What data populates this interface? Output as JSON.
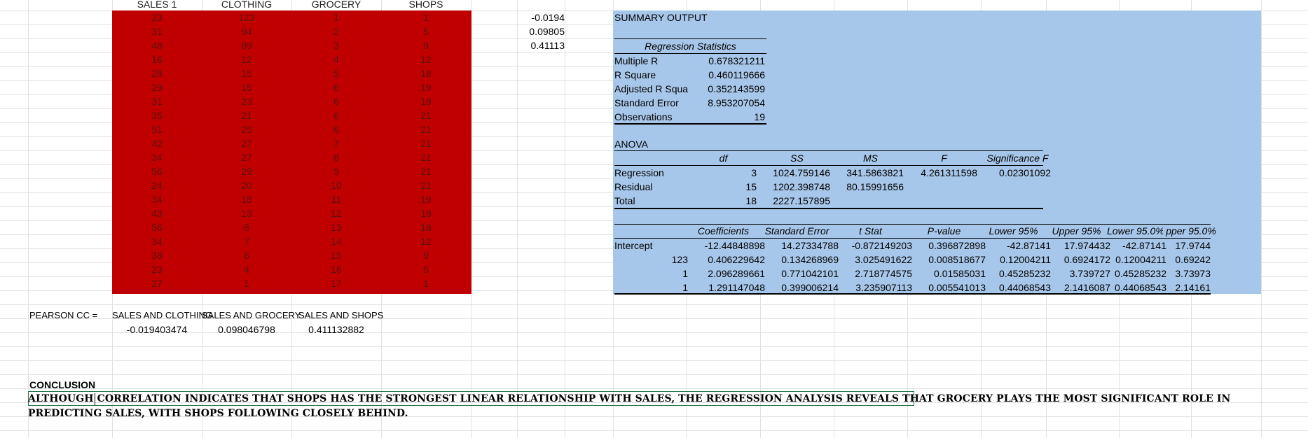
{
  "table": {
    "headers": [
      "SALES 1",
      "CLOTHING",
      "GROCERY",
      "SHOPS"
    ],
    "rows": [
      [
        "23",
        "123",
        "1",
        "1"
      ],
      [
        "31",
        "94",
        "2",
        "5"
      ],
      [
        "48",
        "89",
        "3",
        "9"
      ],
      [
        "16",
        "12",
        "4",
        "12"
      ],
      [
        "28",
        "15",
        "5",
        "18"
      ],
      [
        "29",
        "15",
        "6",
        "19"
      ],
      [
        "31",
        "23",
        "6",
        "19"
      ],
      [
        "35",
        "21",
        "6",
        "21"
      ],
      [
        "51",
        "25",
        "6",
        "21"
      ],
      [
        "42",
        "27",
        "7",
        "21"
      ],
      [
        "34",
        "27",
        "8",
        "21"
      ],
      [
        "56",
        "29",
        "9",
        "21"
      ],
      [
        "24",
        "20",
        "10",
        "21"
      ],
      [
        "34",
        "18",
        "11",
        "19"
      ],
      [
        "43",
        "13",
        "12",
        "19"
      ],
      [
        "56",
        "8",
        "13",
        "18"
      ],
      [
        "34",
        "7",
        "14",
        "12"
      ],
      [
        "38",
        "6",
        "15",
        "9"
      ],
      [
        "23",
        "4",
        "16",
        "5"
      ],
      [
        "27",
        "1",
        "17",
        "1"
      ]
    ]
  },
  "side_values": [
    "-0.0194",
    "0.09805",
    "0.41113"
  ],
  "summary": {
    "title": "SUMMARY OUTPUT",
    "reg_stats_title": "Regression Statistics",
    "reg_stats": [
      [
        "Multiple R",
        "0.678321211"
      ],
      [
        "R Square",
        "0.460119666"
      ],
      [
        "Adjusted R Squa",
        "0.352143599"
      ],
      [
        "Standard Error",
        "8.953207054"
      ],
      [
        "Observations",
        "19"
      ]
    ],
    "anova_title": "ANOVA",
    "anova_headers": [
      "df",
      "SS",
      "MS",
      "F",
      "Significance F"
    ],
    "anova_rows": [
      [
        "Regression",
        "3",
        "1024.759146",
        "341.5863821",
        "4.261311598",
        "0.02301092"
      ],
      [
        "Residual",
        "15",
        "1202.398748",
        "80.15991656",
        "",
        ""
      ],
      [
        "Total",
        "18",
        "2227.157895",
        "",
        "",
        ""
      ]
    ],
    "coef_headers": [
      "Coefficients",
      "Standard Error",
      "t Stat",
      "P-value",
      "Lower 95%",
      "Upper 95%",
      "Lower 95.0%",
      "pper 95.0%"
    ],
    "coef_rows": [
      [
        "Intercept",
        "-12.44848898",
        "14.27334788",
        "-0.872149203",
        "0.396872898",
        "-42.87141",
        "17.974432",
        "-42.87141",
        "17.9744"
      ],
      [
        "123",
        "0.406229642",
        "0.134268969",
        "3.025491622",
        "0.008518677",
        "0.12004211",
        "0.6924172",
        "0.12004211",
        "0.69242"
      ],
      [
        "1",
        "2.096289661",
        "0.771042101",
        "2.718774575",
        "0.01585031",
        "0.45285232",
        "3.739727",
        "0.45285232",
        "3.73973"
      ],
      [
        "1",
        "1.291147048",
        "0.399006214",
        "3.235907113",
        "0.005541013",
        "0.44068543",
        "2.1416087",
        "0.44068543",
        "2.14161"
      ]
    ]
  },
  "pearson": {
    "label": "PEARSON CC =",
    "headers": [
      "SALES AND CLOTHING",
      "SALES AND GROCERY",
      "SALES AND SHOPS"
    ],
    "values": [
      "-0.019403474",
      "0.098046798",
      "0.411132882"
    ]
  },
  "conclusion": {
    "title": "CONCLUSION",
    "text": "ALTHOUGH CORRELATION INDICATES THAT SHOPS HAS THE STRONGEST LINEAR RELATIONSHIP WITH SALES, THE REGRESSION ANALYSIS REVEALS THAT GROCERY PLAYS THE MOST SIGNIFICANT ROLE IN PREDICTING SALES, WITH SHOPS FOLLOWING CLOSELY BEHIND."
  },
  "colors": {
    "red_fill": "#c00000",
    "blue_fill": "#a7c7ea",
    "selection": "#217346"
  }
}
